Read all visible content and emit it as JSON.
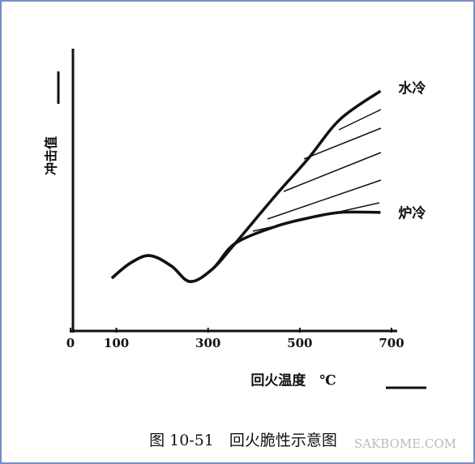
{
  "chart_data": {
    "type": "line",
    "title": "图 10-51　回火脆性示意图",
    "x_label": "回火温度　℃",
    "y_label": "冲击值",
    "watermark": "SAKBOME.COM",
    "x": [
      90,
      130,
      173,
      220,
      261,
      310,
      359,
      447,
      518,
      588,
      676
    ],
    "series": [
      {
        "name": "水冷",
        "color": "#111111",
        "values": [
          18.7,
          24,
          26.7,
          23,
          17.5,
          22,
          31,
          48,
          61,
          75,
          85
        ]
      },
      {
        "name": "炉冷",
        "color": "#111111",
        "values": [
          18.7,
          24,
          26.7,
          23,
          17.5,
          22,
          31,
          37,
          40,
          42,
          42
        ]
      }
    ],
    "xlim": [
      0,
      700
    ],
    "xticks": [
      0,
      100,
      300,
      500,
      700
    ],
    "ylim": [
      0,
      100
    ]
  }
}
